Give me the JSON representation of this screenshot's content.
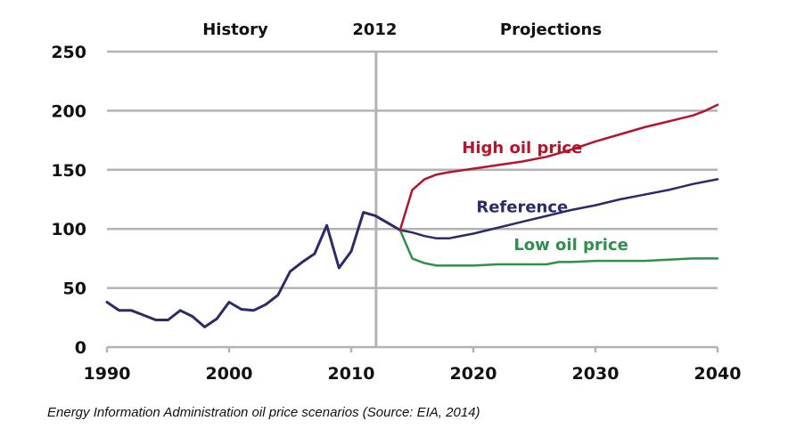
{
  "caption": "Energy Information Administration oil price scenarios (Source: EIA, 2014)",
  "chart_data": {
    "type": "line",
    "title": "",
    "xlabel": "",
    "ylabel": "",
    "xlim": [
      1990,
      2040
    ],
    "ylim": [
      0,
      250
    ],
    "x_ticks": [
      1990,
      2000,
      2010,
      2020,
      2030,
      2040
    ],
    "y_ticks": [
      0,
      50,
      100,
      150,
      200,
      250
    ],
    "grid": "horizontal",
    "divider": {
      "x": 2012,
      "label": "2012"
    },
    "section_labels": {
      "left": "History",
      "right": "Projections"
    },
    "colors": {
      "history": "#2b2a6b",
      "reference": "#2b2a6b",
      "high": "#b5152b",
      "low": "#2e9148",
      "grid": "#b3b3b3"
    },
    "series": [
      {
        "name": "History",
        "key": "history",
        "label": "",
        "x": [
          1990,
          1991,
          1992,
          1993,
          1994,
          1995,
          1996,
          1997,
          1998,
          1999,
          2000,
          2001,
          2002,
          2003,
          2004,
          2005,
          2006,
          2007,
          2008,
          2009,
          2010,
          2011,
          2012,
          2013,
          2014
        ],
        "y": [
          38,
          31,
          31,
          27,
          23,
          23,
          31,
          26,
          17,
          24,
          38,
          32,
          31,
          36,
          44,
          64,
          72,
          79,
          103,
          67,
          81,
          114,
          111,
          105,
          99
        ]
      },
      {
        "name": "High oil price",
        "key": "high",
        "label": "High oil price",
        "x": [
          2014,
          2015,
          2016,
          2017,
          2018,
          2020,
          2022,
          2024,
          2026,
          2028,
          2030,
          2032,
          2034,
          2036,
          2038,
          2039,
          2040
        ],
        "y": [
          99,
          133,
          142,
          146,
          148,
          151,
          154,
          157,
          161,
          167,
          174,
          180,
          186,
          191,
          196,
          200,
          205
        ]
      },
      {
        "name": "Reference",
        "key": "reference",
        "label": "Reference",
        "x": [
          2014,
          2015,
          2016,
          2017,
          2018,
          2020,
          2022,
          2024,
          2026,
          2028,
          2030,
          2032,
          2034,
          2036,
          2038,
          2040
        ],
        "y": [
          99,
          97,
          94,
          92,
          92,
          96,
          101,
          106,
          111,
          116,
          120,
          125,
          129,
          133,
          138,
          142
        ]
      },
      {
        "name": "Low oil price",
        "key": "low",
        "label": "Low oil price",
        "x": [
          2014,
          2015,
          2016,
          2017,
          2018,
          2020,
          2022,
          2024,
          2026,
          2027,
          2028,
          2030,
          2032,
          2034,
          2036,
          2038,
          2040
        ],
        "y": [
          99,
          75,
          71,
          69,
          69,
          69,
          70,
          70,
          70,
          72,
          72,
          73,
          73,
          73,
          74,
          75,
          75
        ]
      }
    ],
    "series_label_positions": {
      "high": {
        "x": 2024,
        "y": 164
      },
      "reference": {
        "x": 2024,
        "y": 114
      },
      "low": {
        "x": 2028,
        "y": 82
      }
    }
  }
}
